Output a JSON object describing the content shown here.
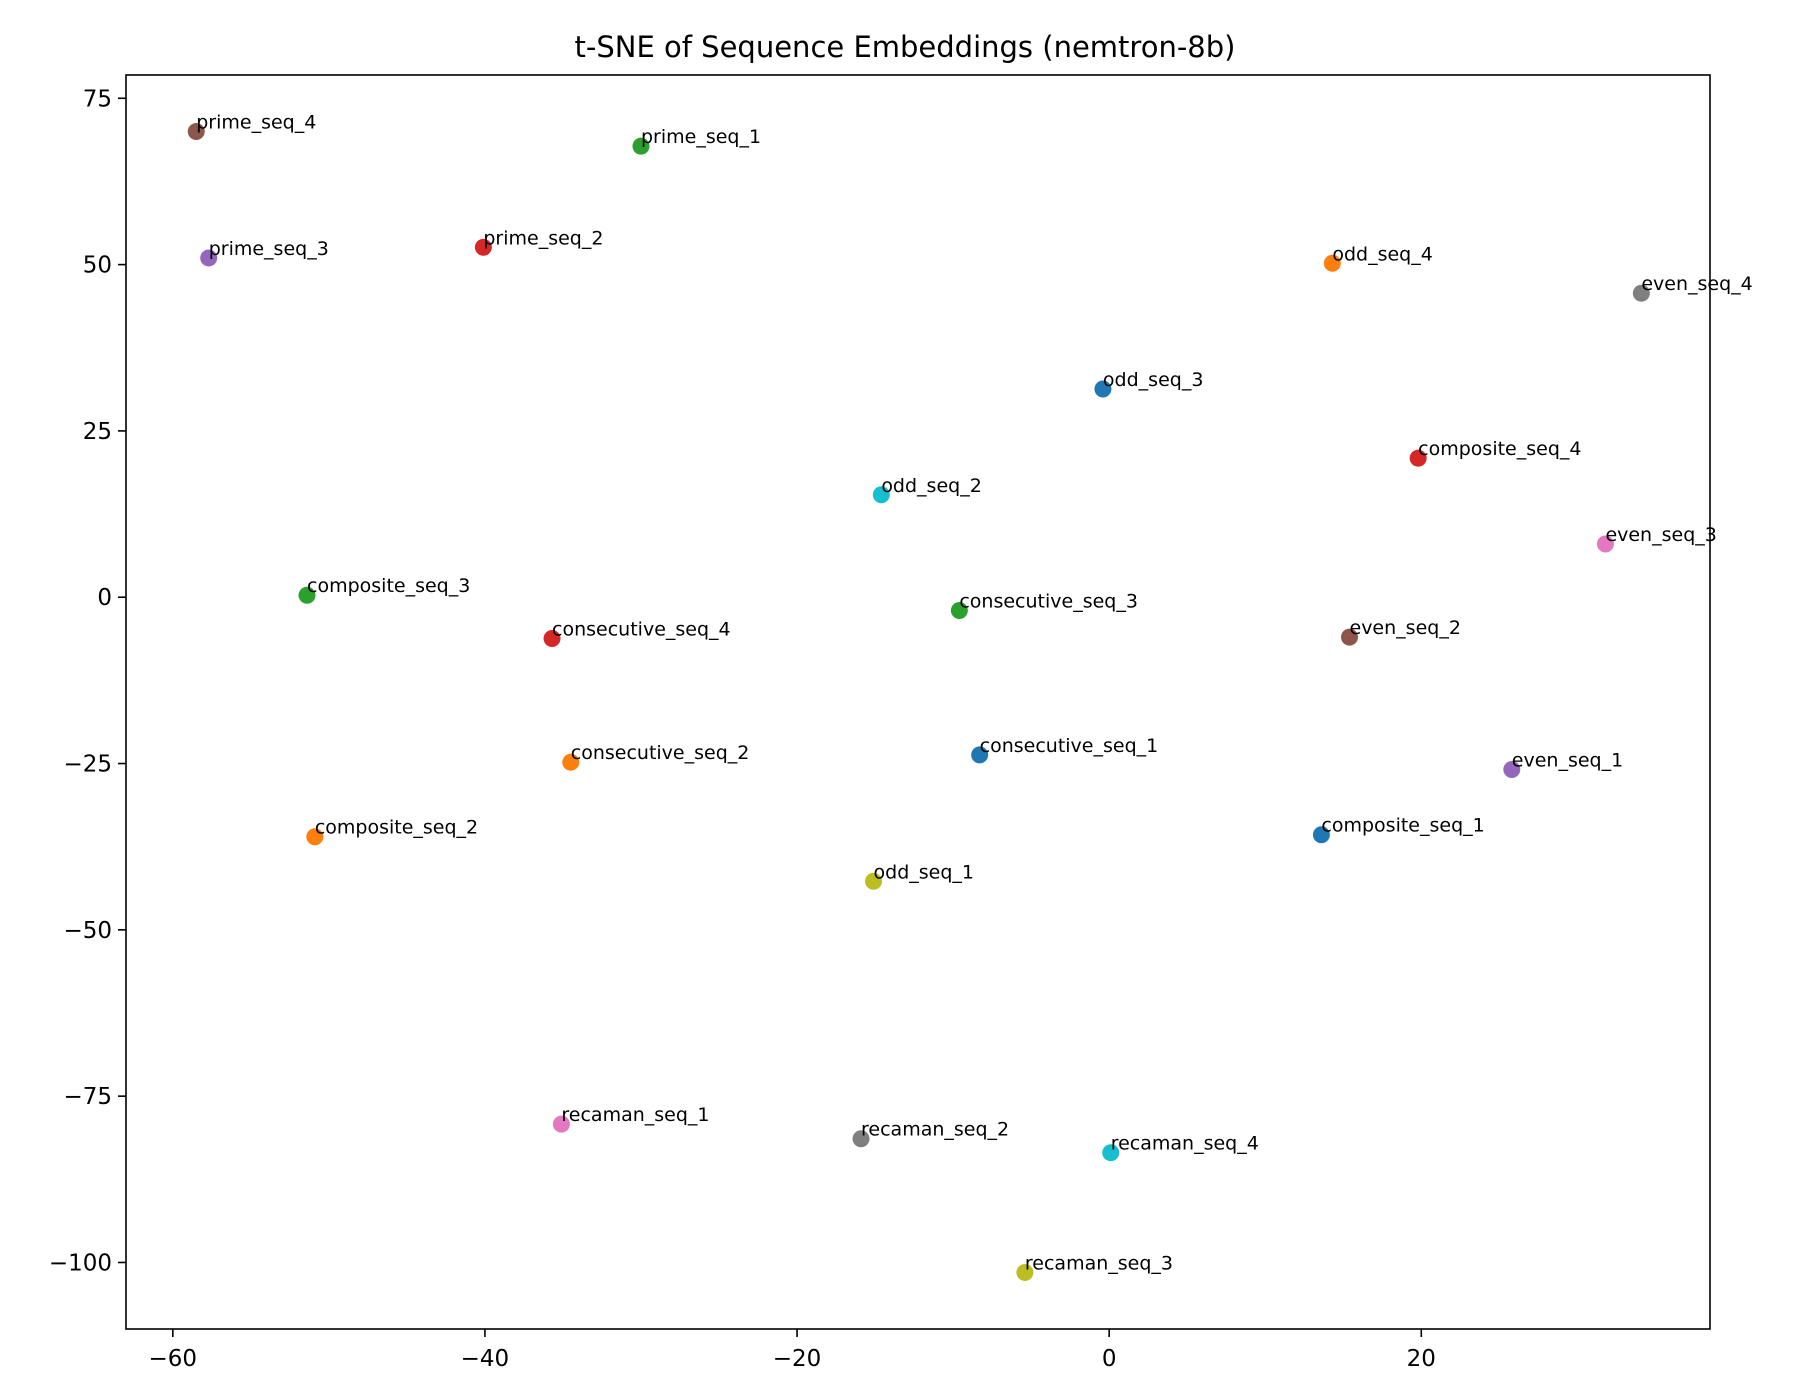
{
  "chart_data": {
    "type": "scatter",
    "title": "t-SNE of Sequence Embeddings (nemtron-8b)",
    "xlabel": "",
    "ylabel": "",
    "xlim": [
      -63,
      38.5
    ],
    "ylim": [
      -110,
      78.5
    ],
    "xticks": [
      -60,
      -40,
      -20,
      0,
      20
    ],
    "xtick_labels": [
      "−60",
      "−40",
      "−20",
      "0",
      "20"
    ],
    "yticks": [
      75,
      50,
      25,
      0,
      -25,
      -50,
      -75,
      -100
    ],
    "ytick_labels": [
      "75",
      "50",
      "25",
      "0",
      "−25",
      "−50",
      "−75",
      "−100"
    ],
    "grid": false,
    "legend": false,
    "points": [
      {
        "label": "prime_seq_4",
        "x": -58.5,
        "y": 70.0,
        "color": "#8c564b"
      },
      {
        "label": "prime_seq_1",
        "x": -30.0,
        "y": 67.8,
        "color": "#2ca02c"
      },
      {
        "label": "prime_seq_3",
        "x": -57.7,
        "y": 51.0,
        "color": "#9467bd"
      },
      {
        "label": "prime_seq_2",
        "x": -40.1,
        "y": 52.6,
        "color": "#d62728"
      },
      {
        "label": "odd_seq_4",
        "x": 14.3,
        "y": 50.2,
        "color": "#ff7f0e"
      },
      {
        "label": "even_seq_4",
        "x": 34.1,
        "y": 45.7,
        "color": "#7f7f7f"
      },
      {
        "label": "odd_seq_3",
        "x": -0.4,
        "y": 31.3,
        "color": "#1f77b4"
      },
      {
        "label": "composite_seq_4",
        "x": 19.8,
        "y": 20.9,
        "color": "#d62728"
      },
      {
        "label": "odd_seq_2",
        "x": -14.6,
        "y": 15.4,
        "color": "#17becf"
      },
      {
        "label": "even_seq_3",
        "x": 31.8,
        "y": 8.0,
        "color": "#e377c2"
      },
      {
        "label": "composite_seq_3",
        "x": -51.4,
        "y": 0.3,
        "color": "#2ca02c"
      },
      {
        "label": "consecutive_seq_3",
        "x": -9.6,
        "y": -2.0,
        "color": "#2ca02c"
      },
      {
        "label": "consecutive_seq_4",
        "x": -35.7,
        "y": -6.2,
        "color": "#d62728"
      },
      {
        "label": "even_seq_2",
        "x": 15.4,
        "y": -6.0,
        "color": "#8c564b"
      },
      {
        "label": "consecutive_seq_2",
        "x": -34.5,
        "y": -24.8,
        "color": "#ff7f0e"
      },
      {
        "label": "consecutive_seq_1",
        "x": -8.3,
        "y": -23.7,
        "color": "#1f77b4"
      },
      {
        "label": "even_seq_1",
        "x": 25.8,
        "y": -25.9,
        "color": "#9467bd"
      },
      {
        "label": "composite_seq_2",
        "x": -50.9,
        "y": -36.0,
        "color": "#ff7f0e"
      },
      {
        "label": "composite_seq_1",
        "x": 13.6,
        "y": -35.7,
        "color": "#1f77b4"
      },
      {
        "label": "odd_seq_1",
        "x": -15.1,
        "y": -42.7,
        "color": "#bcbd22"
      },
      {
        "label": "recaman_seq_1",
        "x": -35.1,
        "y": -79.2,
        "color": "#e377c2"
      },
      {
        "label": "recaman_seq_2",
        "x": -15.9,
        "y": -81.4,
        "color": "#7f7f7f"
      },
      {
        "label": "recaman_seq_4",
        "x": 0.1,
        "y": -83.5,
        "color": "#17becf"
      },
      {
        "label": "recaman_seq_3",
        "x": -5.4,
        "y": -101.5,
        "color": "#bcbd22"
      }
    ]
  }
}
